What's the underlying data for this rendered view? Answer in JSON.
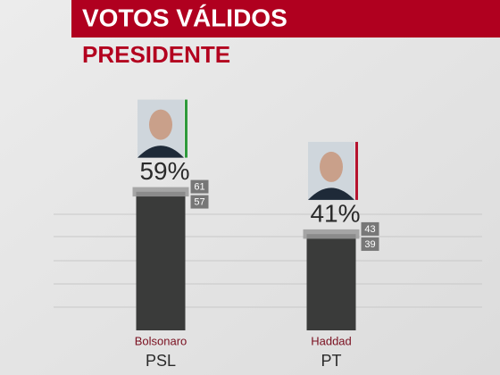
{
  "chart_data": {
    "type": "bar",
    "title": "VOTOS VÁLIDOS",
    "subtitle": "PRESIDENTE",
    "categories": [
      "Bolsonaro",
      "Haddad"
    ],
    "parties": [
      "PSL",
      "PT"
    ],
    "values": [
      59,
      41
    ],
    "value_labels": [
      "59%",
      "41%"
    ],
    "upper": [
      61,
      43
    ],
    "lower": [
      57,
      39
    ],
    "color": "#3a3b3a",
    "range_color": "#9a9a9a",
    "party_colors": [
      "#2e9a3c",
      "#b5122f"
    ]
  }
}
